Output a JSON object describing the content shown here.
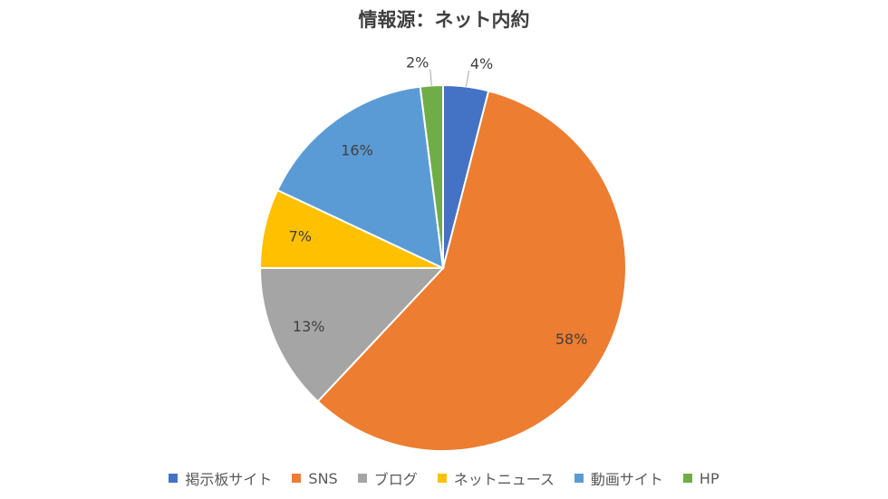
{
  "chart_data": {
    "type": "pie",
    "title": "情報源：ネット内約",
    "categories": [
      "掲示板サイト",
      "SNS",
      "ブログ",
      "ネットニュース",
      "動画サイト",
      "HP"
    ],
    "values": [
      4,
      58,
      13,
      7,
      16,
      2
    ],
    "data_labels": [
      "4%",
      "58%",
      "13%",
      "7%",
      "16%",
      "2%"
    ],
    "colors": [
      "#4472C4",
      "#ED7D31",
      "#A5A5A5",
      "#FFC000",
      "#5B9BD5",
      "#70AD47"
    ],
    "legend": "bottom"
  }
}
